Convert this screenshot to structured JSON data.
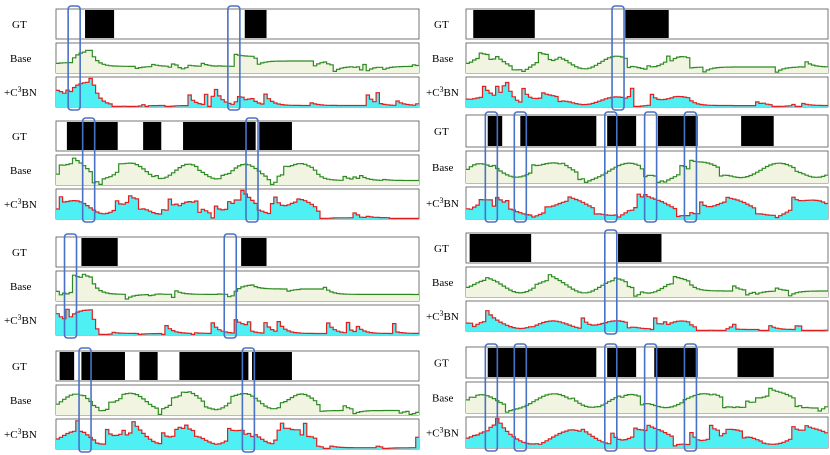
{
  "labels": {
    "gt": "GT",
    "base": "Base",
    "ours_prefix": "+C",
    "ours_sup": "3",
    "ours_suffix": "BN"
  },
  "colors": {
    "gt_segment": "#000000",
    "base_line": "#2e8b22",
    "base_fill": "#f1f4e1",
    "ours_line": "#e02020",
    "ours_fill": "#4ff0f4",
    "highlight_box": "#4a72c4",
    "track_border": "#555555"
  },
  "chart_data": [
    {
      "type": "area",
      "gt_segments": [
        [
          0.08,
          0.16
        ],
        [
          0.52,
          0.58
        ]
      ],
      "highlight_positions": [
        0.05,
        0.49
      ],
      "pattern": "A"
    },
    {
      "type": "area",
      "gt_segments": [
        [
          0.02,
          0.19
        ],
        [
          0.44,
          0.56
        ]
      ],
      "highlight_positions": [
        0.42
      ],
      "pattern": "B"
    },
    {
      "type": "area",
      "gt_segments": [
        [
          0.03,
          0.17
        ],
        [
          0.24,
          0.29
        ],
        [
          0.35,
          0.55
        ],
        [
          0.56,
          0.65
        ]
      ],
      "highlight_positions": [
        0.09,
        0.54
      ],
      "pattern": "C"
    },
    {
      "type": "area",
      "gt_segments": [
        [
          0.06,
          0.1
        ],
        [
          0.15,
          0.36
        ],
        [
          0.39,
          0.47
        ],
        [
          0.53,
          0.64
        ],
        [
          0.76,
          0.85
        ]
      ],
      "highlight_positions": [
        0.07,
        0.15,
        0.4,
        0.51,
        0.62
      ],
      "pattern": "D"
    },
    {
      "type": "area",
      "gt_segments": [
        [
          0.07,
          0.17
        ],
        [
          0.51,
          0.58
        ]
      ],
      "highlight_positions": [
        0.04,
        0.48
      ],
      "pattern": "A"
    },
    {
      "type": "area",
      "gt_segments": [
        [
          0.01,
          0.18
        ],
        [
          0.42,
          0.54
        ]
      ],
      "highlight_positions": [
        0.4
      ],
      "pattern": "B"
    },
    {
      "type": "area",
      "gt_segments": [
        [
          0.01,
          0.05
        ],
        [
          0.07,
          0.19
        ],
        [
          0.23,
          0.28
        ],
        [
          0.34,
          0.53
        ],
        [
          0.54,
          0.65
        ]
      ],
      "highlight_positions": [
        0.08,
        0.53
      ],
      "pattern": "C"
    },
    {
      "type": "area",
      "gt_segments": [
        [
          0.06,
          0.36
        ],
        [
          0.39,
          0.47
        ],
        [
          0.52,
          0.64
        ],
        [
          0.75,
          0.85
        ]
      ],
      "highlight_positions": [
        0.07,
        0.15,
        0.4,
        0.51,
        0.62
      ],
      "pattern": "D"
    }
  ]
}
